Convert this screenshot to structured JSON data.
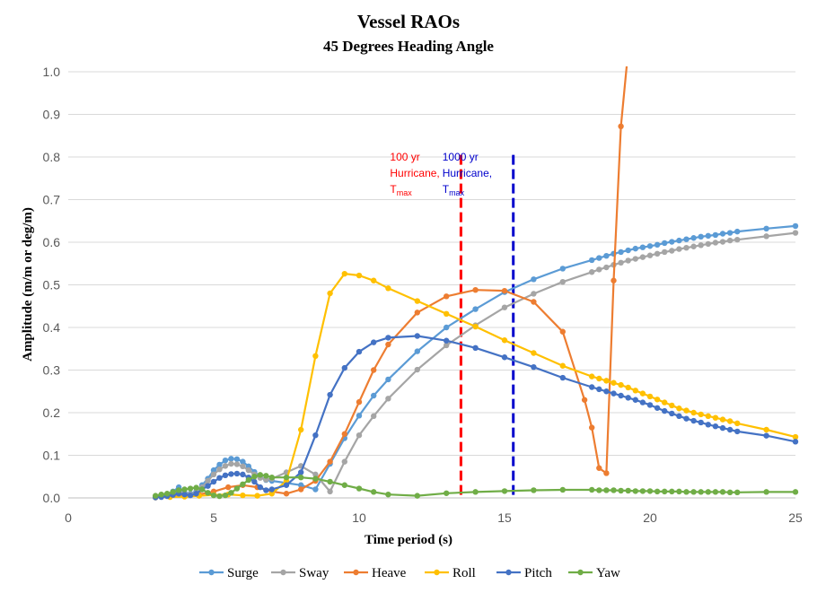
{
  "chart_data": {
    "type": "line",
    "title": "Vessel RAOs",
    "subtitle": "45 Degrees Heading Angle",
    "xlabel": "Time period (s)",
    "ylabel": "Amplitude (m/m or deg/m)",
    "xlim": [
      0,
      25
    ],
    "ylim": [
      0,
      1.0
    ],
    "xticks": [
      "0",
      "5",
      "10",
      "15",
      "20",
      "25"
    ],
    "yticks": [
      "0.0",
      "0.1",
      "0.2",
      "0.3",
      "0.4",
      "0.5",
      "0.6",
      "0.7",
      "0.8",
      "0.9",
      "1.0"
    ],
    "grid": "horizontal",
    "legend": "bottom",
    "series": [
      {
        "name": "Surge",
        "color": "#5B9BD5",
        "x": [
          3.0,
          3.2,
          3.4,
          3.6,
          3.8,
          4.0,
          4.2,
          4.4,
          4.6,
          4.8,
          5.0,
          5.2,
          5.4,
          5.6,
          5.8,
          6.0,
          6.2,
          6.4,
          6.6,
          6.8,
          7.0,
          7.5,
          8.0,
          8.5,
          9.0,
          9.5,
          10.0,
          10.5,
          11.0,
          12.0,
          13.0,
          14.0,
          15.0,
          16.0,
          17.0,
          18.0,
          18.25,
          18.5,
          18.75,
          19.0,
          19.25,
          19.5,
          19.75,
          20.0,
          20.25,
          20.5,
          20.75,
          21.0,
          21.25,
          21.5,
          21.75,
          22.0,
          22.25,
          22.5,
          22.75,
          23.0,
          24.0,
          25.0
        ],
        "y": [
          0.002,
          0.004,
          0.008,
          0.015,
          0.025,
          0.012,
          0.01,
          0.015,
          0.03,
          0.045,
          0.065,
          0.078,
          0.088,
          0.092,
          0.091,
          0.085,
          0.074,
          0.061,
          0.05,
          0.042,
          0.04,
          0.035,
          0.03,
          0.02,
          0.08,
          0.14,
          0.193,
          0.24,
          0.278,
          0.344,
          0.4,
          0.443,
          0.483,
          0.513,
          0.538,
          0.558,
          0.563,
          0.568,
          0.573,
          0.577,
          0.581,
          0.585,
          0.588,
          0.591,
          0.594,
          0.598,
          0.601,
          0.604,
          0.607,
          0.61,
          0.613,
          0.615,
          0.617,
          0.62,
          0.622,
          0.625,
          0.632,
          0.638
        ]
      },
      {
        "name": "Sway",
        "color": "#A5A5A5",
        "x": [
          3.0,
          3.2,
          3.4,
          3.6,
          3.8,
          4.0,
          4.2,
          4.4,
          4.6,
          4.8,
          5.0,
          5.2,
          5.4,
          5.6,
          5.8,
          6.0,
          6.2,
          6.4,
          6.6,
          6.8,
          7.0,
          7.5,
          8.0,
          8.5,
          9.0,
          9.5,
          10.0,
          10.5,
          11.0,
          12.0,
          13.0,
          14.0,
          15.0,
          16.0,
          17.0,
          18.0,
          18.25,
          18.5,
          18.75,
          19.0,
          19.25,
          19.5,
          19.75,
          20.0,
          20.25,
          20.5,
          20.75,
          21.0,
          21.25,
          21.5,
          21.75,
          22.0,
          22.25,
          22.5,
          22.75,
          23.0,
          24.0,
          25.0
        ],
        "y": [
          0.002,
          0.004,
          0.006,
          0.01,
          0.015,
          0.01,
          0.008,
          0.012,
          0.025,
          0.04,
          0.055,
          0.067,
          0.075,
          0.08,
          0.079,
          0.074,
          0.065,
          0.055,
          0.047,
          0.043,
          0.045,
          0.06,
          0.075,
          0.055,
          0.015,
          0.085,
          0.147,
          0.192,
          0.233,
          0.301,
          0.358,
          0.405,
          0.447,
          0.479,
          0.507,
          0.53,
          0.536,
          0.541,
          0.547,
          0.552,
          0.557,
          0.561,
          0.565,
          0.569,
          0.573,
          0.577,
          0.58,
          0.584,
          0.587,
          0.59,
          0.593,
          0.596,
          0.599,
          0.601,
          0.604,
          0.606,
          0.614,
          0.622
        ]
      },
      {
        "name": "Heave",
        "color": "#ED7D31",
        "x": [
          3.0,
          3.5,
          4.0,
          4.5,
          5.0,
          5.5,
          6.0,
          6.5,
          7.0,
          7.5,
          8.0,
          8.5,
          9.0,
          9.5,
          10.0,
          10.5,
          11.0,
          12.0,
          13.0,
          14.0,
          15.0,
          16.0,
          17.0,
          17.75,
          18.0,
          18.25,
          18.5,
          18.75,
          19.0,
          19.25,
          19.5
        ],
        "y": [
          0.001,
          0.003,
          0.005,
          0.008,
          0.015,
          0.025,
          0.03,
          0.025,
          0.015,
          0.01,
          0.02,
          0.04,
          0.085,
          0.15,
          0.225,
          0.3,
          0.36,
          0.435,
          0.473,
          0.488,
          0.486,
          0.46,
          0.39,
          0.23,
          0.165,
          0.07,
          0.058,
          0.51,
          0.872,
          1.05,
          1.2
        ]
      },
      {
        "name": "Roll",
        "color": "#FFC000",
        "x": [
          3.0,
          3.5,
          4.0,
          4.5,
          5.0,
          5.5,
          6.0,
          6.5,
          7.0,
          7.5,
          8.0,
          8.5,
          9.0,
          9.5,
          10.0,
          10.5,
          11.0,
          12.0,
          13.0,
          14.0,
          15.0,
          16.0,
          17.0,
          18.0,
          18.25,
          18.5,
          18.75,
          19.0,
          19.25,
          19.5,
          19.75,
          20.0,
          20.25,
          20.5,
          20.75,
          21.0,
          21.25,
          21.5,
          21.75,
          22.0,
          22.25,
          22.5,
          22.75,
          23.0,
          24.0,
          25.0
        ],
        "y": [
          0.001,
          0.002,
          0.003,
          0.005,
          0.007,
          0.008,
          0.006,
          0.005,
          0.01,
          0.04,
          0.16,
          0.333,
          0.48,
          0.526,
          0.522,
          0.51,
          0.492,
          0.462,
          0.432,
          0.402,
          0.37,
          0.34,
          0.31,
          0.285,
          0.28,
          0.275,
          0.27,
          0.265,
          0.259,
          0.252,
          0.245,
          0.238,
          0.231,
          0.224,
          0.217,
          0.21,
          0.205,
          0.2,
          0.196,
          0.192,
          0.188,
          0.184,
          0.18,
          0.175,
          0.16,
          0.143
        ]
      },
      {
        "name": "Pitch",
        "color": "#4472C4",
        "x": [
          3.0,
          3.2,
          3.4,
          3.6,
          3.8,
          4.0,
          4.2,
          4.4,
          4.6,
          4.8,
          5.0,
          5.2,
          5.4,
          5.6,
          5.8,
          6.0,
          6.2,
          6.4,
          6.6,
          6.8,
          7.0,
          7.5,
          8.0,
          8.5,
          9.0,
          9.5,
          10.0,
          10.5,
          11.0,
          12.0,
          13.0,
          14.0,
          15.0,
          16.0,
          17.0,
          18.0,
          18.25,
          18.5,
          18.75,
          19.0,
          19.25,
          19.5,
          19.75,
          20.0,
          20.25,
          20.5,
          20.75,
          21.0,
          21.25,
          21.5,
          21.75,
          22.0,
          22.25,
          22.5,
          22.75,
          23.0,
          24.0,
          25.0
        ],
        "y": [
          0.001,
          0.002,
          0.004,
          0.007,
          0.01,
          0.008,
          0.006,
          0.01,
          0.02,
          0.028,
          0.038,
          0.047,
          0.053,
          0.056,
          0.057,
          0.055,
          0.048,
          0.038,
          0.025,
          0.018,
          0.02,
          0.03,
          0.06,
          0.147,
          0.242,
          0.305,
          0.343,
          0.365,
          0.376,
          0.38,
          0.369,
          0.352,
          0.33,
          0.307,
          0.282,
          0.26,
          0.255,
          0.25,
          0.245,
          0.24,
          0.235,
          0.23,
          0.224,
          0.218,
          0.211,
          0.204,
          0.198,
          0.192,
          0.186,
          0.181,
          0.177,
          0.172,
          0.168,
          0.164,
          0.16,
          0.156,
          0.146,
          0.132
        ]
      },
      {
        "name": "Yaw",
        "color": "#70AD47",
        "x": [
          3.0,
          3.2,
          3.4,
          3.6,
          3.8,
          4.0,
          4.2,
          4.4,
          4.6,
          4.8,
          5.0,
          5.2,
          5.4,
          5.6,
          5.8,
          6.0,
          6.2,
          6.4,
          6.6,
          6.8,
          7.0,
          7.5,
          8.0,
          8.5,
          9.0,
          9.5,
          10.0,
          10.5,
          11.0,
          12.0,
          13.0,
          14.0,
          15.0,
          16.0,
          17.0,
          18.0,
          18.25,
          18.5,
          18.75,
          19.0,
          19.25,
          19.5,
          19.75,
          20.0,
          20.25,
          20.5,
          20.75,
          21.0,
          21.25,
          21.5,
          21.75,
          22.0,
          22.25,
          22.5,
          22.75,
          23.0,
          24.0,
          25.0
        ],
        "y": [
          0.005,
          0.008,
          0.01,
          0.014,
          0.018,
          0.02,
          0.022,
          0.024,
          0.02,
          0.012,
          0.006,
          0.004,
          0.006,
          0.012,
          0.022,
          0.032,
          0.042,
          0.05,
          0.054,
          0.052,
          0.048,
          0.048,
          0.048,
          0.045,
          0.038,
          0.03,
          0.022,
          0.014,
          0.008,
          0.005,
          0.011,
          0.014,
          0.016,
          0.018,
          0.019,
          0.019,
          0.018,
          0.018,
          0.018,
          0.017,
          0.017,
          0.016,
          0.016,
          0.016,
          0.015,
          0.015,
          0.015,
          0.015,
          0.014,
          0.014,
          0.014,
          0.014,
          0.014,
          0.014,
          0.013,
          0.013,
          0.014,
          0.014
        ]
      }
    ],
    "annotations": [
      {
        "x": 13.5,
        "color": "#FF0000",
        "lines": [
          "100 yr",
          "Hurricane,"
        ],
        "tmax_main": "T",
        "tmax_sub": "max"
      },
      {
        "x": 15.3,
        "color": "#0000CC",
        "lines": [
          "1000 yr",
          "Hurricane,"
        ],
        "tmax_main": "T",
        "tmax_sub": "max"
      }
    ]
  }
}
